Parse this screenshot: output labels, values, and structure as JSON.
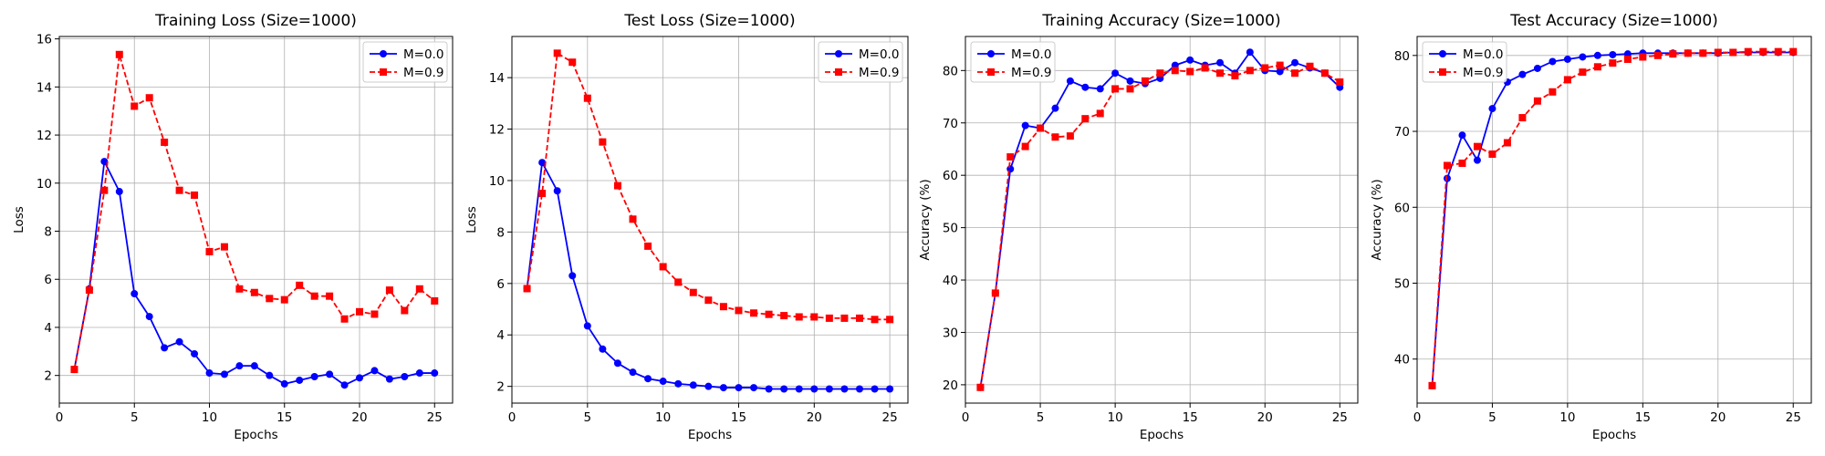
{
  "chart_data": [
    {
      "type": "line",
      "title": "Training Loss (Size=1000)",
      "xlabel": "Epochs",
      "ylabel": "Loss",
      "xlim": [
        0,
        26.2
      ],
      "ylim": [
        0.85,
        16.1
      ],
      "xticks": [
        0,
        5,
        10,
        15,
        20,
        25
      ],
      "yticks": [
        2,
        4,
        6,
        8,
        10,
        12,
        14,
        16
      ],
      "grid": true,
      "legend": "top-right",
      "x": [
        1,
        2,
        3,
        4,
        5,
        6,
        7,
        8,
        9,
        10,
        11,
        12,
        13,
        14,
        15,
        16,
        17,
        18,
        19,
        20,
        21,
        22,
        23,
        24,
        25
      ],
      "series": [
        {
          "name": "M=0.0",
          "color": "#0000ff",
          "marker": "circle",
          "dash": "solid",
          "values": [
            2.25,
            5.6,
            10.9,
            9.65,
            5.4,
            4.45,
            3.15,
            3.4,
            2.9,
            2.1,
            2.05,
            2.4,
            2.4,
            2.0,
            1.65,
            1.8,
            1.95,
            2.05,
            1.6,
            1.9,
            2.2,
            1.85,
            1.95,
            2.1,
            2.1
          ]
        },
        {
          "name": "M=0.9",
          "color": "#ff0000",
          "marker": "square",
          "dash": "dashed",
          "values": [
            2.25,
            5.55,
            9.7,
            15.35,
            13.2,
            13.55,
            11.7,
            9.7,
            9.5,
            7.15,
            7.35,
            5.6,
            5.45,
            5.2,
            5.15,
            5.75,
            5.3,
            5.3,
            4.35,
            4.65,
            4.55,
            5.55,
            4.7,
            5.6,
            5.1
          ]
        }
      ]
    },
    {
      "type": "line",
      "title": "Test Loss (Size=1000)",
      "xlabel": "Epochs",
      "ylabel": "Loss",
      "xlim": [
        0,
        26.2
      ],
      "ylim": [
        1.35,
        15.6
      ],
      "xticks": [
        0,
        5,
        10,
        15,
        20,
        25
      ],
      "yticks": [
        2,
        4,
        6,
        8,
        10,
        12,
        14
      ],
      "grid": true,
      "legend": "top-right",
      "x": [
        1,
        2,
        3,
        4,
        5,
        6,
        7,
        8,
        9,
        10,
        11,
        12,
        13,
        14,
        15,
        16,
        17,
        18,
        19,
        20,
        21,
        22,
        23,
        24,
        25
      ],
      "series": [
        {
          "name": "M=0.0",
          "color": "#0000ff",
          "marker": "circle",
          "dash": "solid",
          "values": [
            5.8,
            10.7,
            9.6,
            6.3,
            4.35,
            3.45,
            2.9,
            2.55,
            2.3,
            2.2,
            2.1,
            2.05,
            2.0,
            1.95,
            1.95,
            1.95,
            1.9,
            1.9,
            1.9,
            1.9,
            1.9,
            1.9,
            1.9,
            1.9,
            1.9
          ]
        },
        {
          "name": "M=0.9",
          "color": "#ff0000",
          "marker": "square",
          "dash": "dashed",
          "values": [
            5.8,
            9.5,
            14.95,
            14.6,
            13.2,
            11.5,
            9.8,
            8.5,
            7.45,
            6.65,
            6.05,
            5.65,
            5.35,
            5.1,
            4.95,
            4.85,
            4.8,
            4.75,
            4.7,
            4.7,
            4.65,
            4.65,
            4.65,
            4.6,
            4.6
          ]
        }
      ]
    },
    {
      "type": "line",
      "title": "Training Accuracy (Size=1000)",
      "xlabel": "Epochs",
      "ylabel": "Accuracy (%)",
      "xlim": [
        0,
        26.2
      ],
      "ylim": [
        16.5,
        86.5
      ],
      "xticks": [
        0,
        5,
        10,
        15,
        20,
        25
      ],
      "yticks": [
        20,
        30,
        40,
        50,
        60,
        70,
        80
      ],
      "grid": true,
      "legend": "top-left",
      "x": [
        1,
        2,
        3,
        4,
        5,
        6,
        7,
        8,
        9,
        10,
        11,
        12,
        13,
        14,
        15,
        16,
        17,
        18,
        19,
        20,
        21,
        22,
        23,
        24,
        25
      ],
      "series": [
        {
          "name": "M=0.0",
          "color": "#0000ff",
          "marker": "circle",
          "dash": "solid",
          "values": [
            19.5,
            37.5,
            61.2,
            69.5,
            69.0,
            72.8,
            78.0,
            76.8,
            76.5,
            79.5,
            78.0,
            77.5,
            78.5,
            81.0,
            82.0,
            81.0,
            81.5,
            79.5,
            83.5,
            80.0,
            79.8,
            81.5,
            80.5,
            79.5,
            76.8
          ]
        },
        {
          "name": "M=0.9",
          "color": "#ff0000",
          "marker": "square",
          "dash": "dashed",
          "values": [
            19.5,
            37.5,
            63.5,
            65.5,
            69.0,
            67.3,
            67.5,
            70.8,
            71.8,
            76.5,
            76.5,
            78.0,
            79.5,
            80.0,
            79.8,
            80.5,
            79.5,
            79.0,
            80.0,
            80.5,
            81.0,
            79.5,
            80.8,
            79.5,
            77.8
          ]
        }
      ]
    },
    {
      "type": "line",
      "title": "Test Accuracy (Size=1000)",
      "xlabel": "Epochs",
      "ylabel": "Accuracy (%)",
      "xlim": [
        0,
        26.2
      ],
      "ylim": [
        34.2,
        82.5
      ],
      "xticks": [
        0,
        5,
        10,
        15,
        20,
        25
      ],
      "yticks": [
        40,
        50,
        60,
        70,
        80
      ],
      "grid": true,
      "legend": "top-left",
      "x": [
        1,
        2,
        3,
        4,
        5,
        6,
        7,
        8,
        9,
        10,
        11,
        12,
        13,
        14,
        15,
        16,
        17,
        18,
        19,
        20,
        21,
        22,
        23,
        24,
        25
      ],
      "series": [
        {
          "name": "M=0.0",
          "color": "#0000ff",
          "marker": "circle",
          "dash": "solid",
          "values": [
            36.5,
            63.8,
            69.5,
            66.2,
            73.0,
            76.5,
            77.5,
            78.3,
            79.2,
            79.5,
            79.8,
            80.0,
            80.1,
            80.2,
            80.3,
            80.3,
            80.3,
            80.3,
            80.3,
            80.3,
            80.4,
            80.4,
            80.4,
            80.4,
            80.4
          ]
        },
        {
          "name": "M=0.9",
          "color": "#ff0000",
          "marker": "square",
          "dash": "dashed",
          "values": [
            36.5,
            65.5,
            65.8,
            68.0,
            67.0,
            68.5,
            71.8,
            74.0,
            75.2,
            76.8,
            77.8,
            78.5,
            79.0,
            79.5,
            79.8,
            80.0,
            80.2,
            80.3,
            80.3,
            80.4,
            80.4,
            80.5,
            80.5,
            80.5,
            80.5
          ]
        }
      ]
    }
  ]
}
